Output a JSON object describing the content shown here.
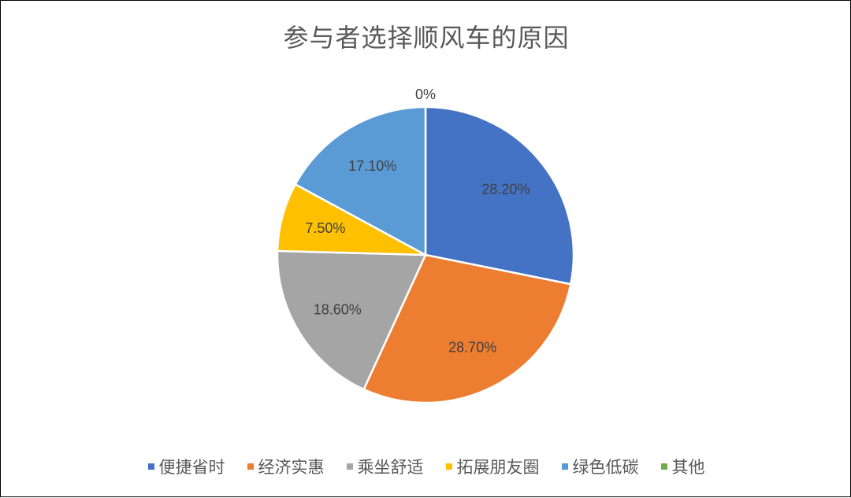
{
  "chart_data": {
    "type": "pie",
    "title": "参与者选择顺风车的原因",
    "categories": [
      "便捷省时",
      "经济实惠",
      "乘坐舒适",
      "拓展朋友圈",
      "绿色低碳",
      "其他"
    ],
    "values": [
      28.2,
      28.7,
      18.6,
      7.5,
      17.1,
      0
    ],
    "labels": [
      "28.20%",
      "28.70%",
      "18.60%",
      "7.50%",
      "17.10%",
      "0%"
    ],
    "colors": [
      "#4472C4",
      "#ED7D31",
      "#A5A5A5",
      "#FFC000",
      "#5B9BD5",
      "#70AD47"
    ],
    "legend_position": "bottom",
    "start_angle": "12 o'clock",
    "direction": "clockwise"
  }
}
